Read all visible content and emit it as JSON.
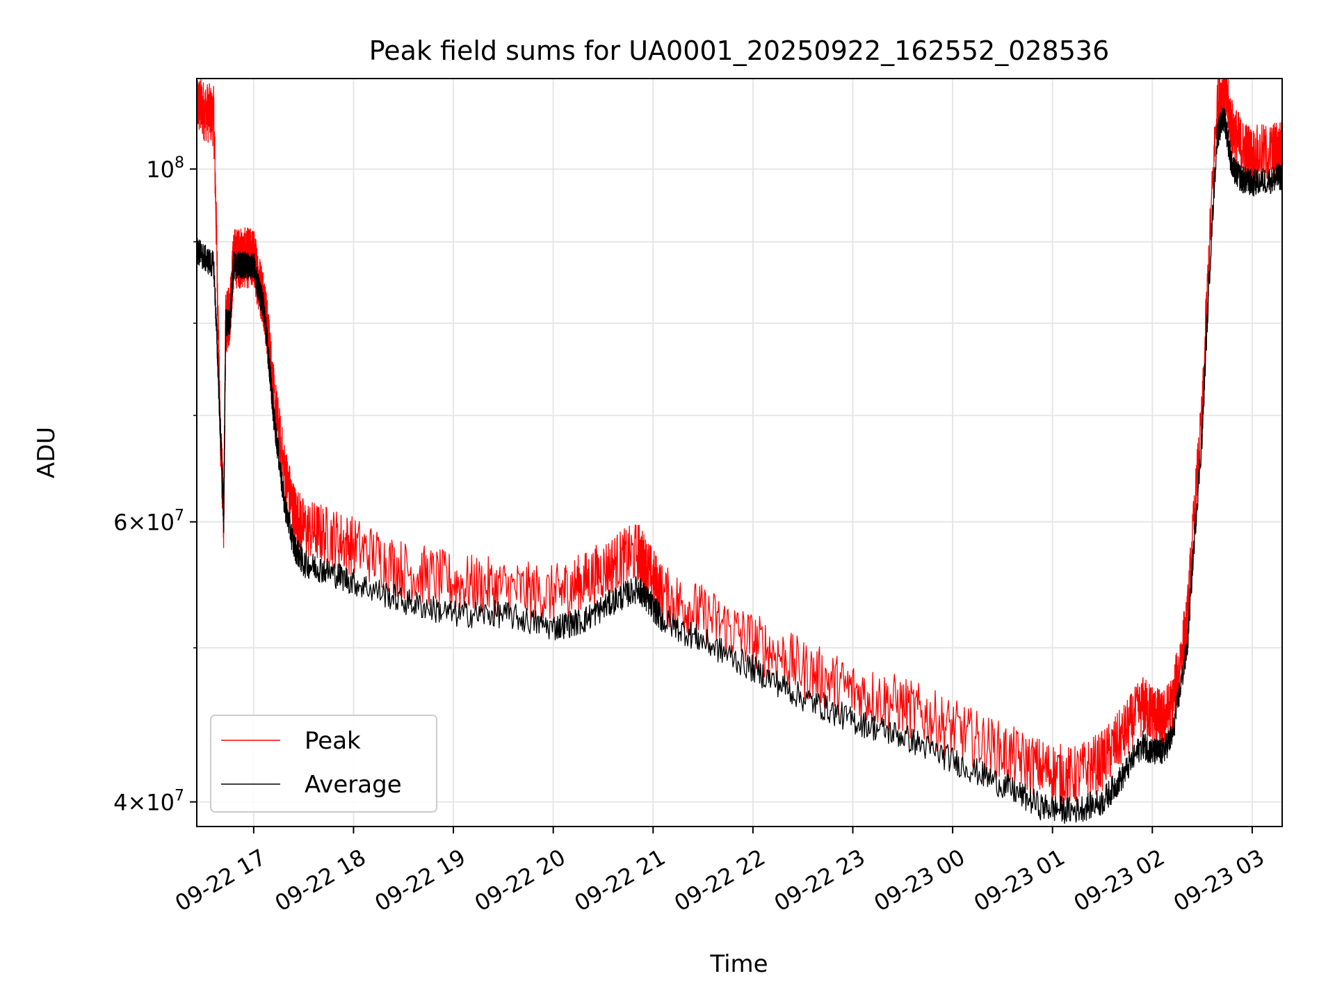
{
  "chart_data": {
    "type": "line",
    "title": "Peak field sums for UA0001_20250922_162552_028536",
    "xlabel": "Time",
    "ylabel": "ADU",
    "yscale": "log",
    "xlim": [
      16.43,
      27.3
    ],
    "ylim": [
      38600000,
      114000000
    ],
    "grid": true,
    "legend_position": "lower-left",
    "x_ticks": [
      {
        "value": 17,
        "label": "09-22 17"
      },
      {
        "value": 18,
        "label": "09-22 18"
      },
      {
        "value": 19,
        "label": "09-22 19"
      },
      {
        "value": 20,
        "label": "09-22 20"
      },
      {
        "value": 21,
        "label": "09-22 21"
      },
      {
        "value": 22,
        "label": "09-22 22"
      },
      {
        "value": 23,
        "label": "09-22 23"
      },
      {
        "value": 24,
        "label": "09-23 00"
      },
      {
        "value": 25,
        "label": "09-23 01"
      },
      {
        "value": 26,
        "label": "09-23 02"
      },
      {
        "value": 27,
        "label": "09-23 03"
      }
    ],
    "y_major_ticks": [
      {
        "value": 100000000,
        "base": "10",
        "exp": "8"
      },
      {
        "value": 60000000,
        "mant": "6",
        "base": "10",
        "exp": "7"
      },
      {
        "value": 40000000,
        "mant": "4",
        "base": "10",
        "exp": "7"
      }
    ],
    "y_minor_ticks": [
      50000000,
      70000000,
      80000000,
      90000000
    ],
    "x_unit_note": "x values are hours since 09-22 00:00",
    "series": [
      {
        "name": "Peak",
        "color": "#ff0000",
        "noise_amplitude": 2200000,
        "x": [
          16.43,
          16.5,
          16.6,
          16.66,
          16.7,
          16.72,
          16.76,
          16.8,
          16.85,
          16.9,
          16.95,
          17.0,
          17.05,
          17.1,
          17.15,
          17.2,
          17.3,
          17.4,
          17.5,
          17.7,
          18.0,
          18.5,
          19.0,
          19.5,
          20.0,
          20.3,
          20.6,
          20.85,
          20.95,
          21.1,
          21.5,
          22.0,
          22.5,
          23.0,
          23.5,
          24.0,
          24.5,
          24.9,
          25.2,
          25.5,
          25.7,
          25.9,
          26.0,
          26.1,
          26.2,
          26.35,
          26.5,
          26.65,
          26.72,
          26.8,
          26.9,
          27.0,
          27.2,
          27.3
        ],
        "y": [
          110000000,
          109000000,
          108000000,
          70000000,
          60000000,
          80000000,
          81000000,
          88000000,
          88000000,
          88000000,
          88000000,
          88000000,
          85000000,
          83000000,
          78000000,
          72000000,
          65000000,
          61000000,
          59500000,
          59000000,
          58000000,
          56000000,
          55000000,
          54500000,
          54000000,
          55000000,
          56500000,
          57500000,
          56000000,
          54000000,
          52500000,
          50500000,
          48500000,
          47000000,
          46000000,
          44500000,
          43000000,
          42000000,
          41500000,
          42500000,
          44000000,
          46000000,
          45500000,
          45000000,
          46000000,
          52000000,
          70000000,
          110000000,
          112000000,
          106000000,
          103000000,
          102000000,
          102500000,
          103000000
        ]
      },
      {
        "name": "Average",
        "color": "#000000",
        "noise_amplitude": 1000000,
        "x": [
          16.43,
          16.5,
          16.6,
          16.66,
          16.7,
          16.72,
          16.76,
          16.8,
          16.85,
          16.9,
          16.95,
          17.0,
          17.05,
          17.1,
          17.15,
          17.2,
          17.3,
          17.4,
          17.5,
          17.7,
          18.0,
          18.5,
          19.0,
          19.5,
          20.0,
          20.3,
          20.6,
          20.85,
          20.95,
          21.1,
          21.5,
          22.0,
          22.5,
          23.0,
          23.5,
          24.0,
          24.5,
          24.9,
          25.2,
          25.5,
          25.7,
          25.9,
          26.0,
          26.1,
          26.2,
          26.35,
          26.5,
          26.65,
          26.72,
          26.8,
          26.9,
          27.0,
          27.2,
          27.3
        ],
        "y": [
          89000000,
          88000000,
          87000000,
          70000000,
          60000000,
          80000000,
          80000000,
          87000000,
          87000000,
          87000000,
          87000000,
          87000000,
          84000000,
          82000000,
          76000000,
          70000000,
          62000000,
          58000000,
          56500000,
          56000000,
          55000000,
          53500000,
          52500000,
          52500000,
          51500000,
          52000000,
          53500000,
          54500000,
          53500000,
          52000000,
          50500000,
          48500000,
          46500000,
          45000000,
          44000000,
          42500000,
          41000000,
          39700000,
          39500000,
          40000000,
          41500000,
          43500000,
          43000000,
          43000000,
          44000000,
          50000000,
          68000000,
          105000000,
          108000000,
          100000000,
          98500000,
          98000000,
          98500000,
          99000000
        ]
      }
    ]
  }
}
